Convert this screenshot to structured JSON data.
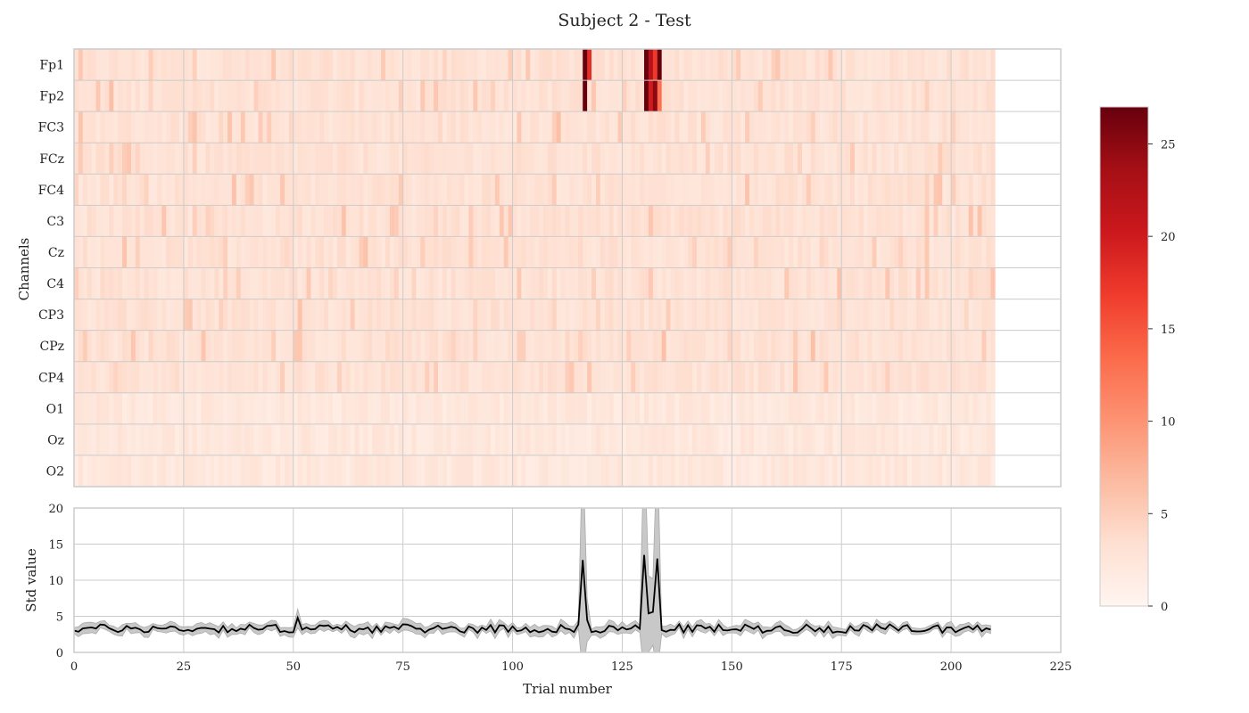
{
  "title": "Subject 2 - Test",
  "chart_data": [
    {
      "type": "heatmap",
      "ylabel": "Channels",
      "channels": [
        "Fp1",
        "Fp2",
        "FC3",
        "FCz",
        "FC4",
        "C3",
        "Cz",
        "C4",
        "CP3",
        "CPz",
        "CP4",
        "O1",
        "Oz",
        "O2"
      ],
      "xlim": [
        0,
        225
      ],
      "x_gridlines": [
        0,
        25,
        50,
        75,
        100,
        125,
        150,
        175,
        200,
        225
      ],
      "n_trials": 210,
      "baseline_value": 3,
      "artifact_cells": [
        {
          "channel": "Fp1",
          "trial": 116,
          "value": 27
        },
        {
          "channel": "Fp1",
          "trial": 117,
          "value": 18
        },
        {
          "channel": "Fp1",
          "trial": 130,
          "value": 27
        },
        {
          "channel": "Fp1",
          "trial": 131,
          "value": 22
        },
        {
          "channel": "Fp1",
          "trial": 132,
          "value": 17
        },
        {
          "channel": "Fp1",
          "trial": 133,
          "value": 27
        },
        {
          "channel": "Fp2",
          "trial": 116,
          "value": 27
        },
        {
          "channel": "Fp2",
          "trial": 130,
          "value": 27
        },
        {
          "channel": "Fp2",
          "trial": 131,
          "value": 20
        },
        {
          "channel": "Fp2",
          "trial": 132,
          "value": 25
        },
        {
          "channel": "Fp2",
          "trial": 133,
          "value": 13
        }
      ],
      "colorbar": {
        "min": 0,
        "max": 27,
        "ticks": [
          0,
          5,
          10,
          15,
          20,
          25
        ],
        "colormap": "Reds",
        "colors": [
          "#fff5f0",
          "#fee0d2",
          "#fcbba1",
          "#fc9272",
          "#fb6a4a",
          "#ef3b2c",
          "#cb181d",
          "#a50f15",
          "#67000d"
        ]
      }
    },
    {
      "type": "line",
      "xlabel": "Trial number",
      "ylabel": "Std value",
      "xlim": [
        0,
        225
      ],
      "ylim": [
        0,
        20
      ],
      "xticks": [
        0,
        25,
        50,
        75,
        100,
        125,
        150,
        175,
        200,
        225
      ],
      "yticks": [
        0,
        5,
        10,
        15,
        20
      ],
      "line_color": "#000000",
      "band_color": "#c8c8c8",
      "baseline_mean": 3.3,
      "baseline_band": 0.6,
      "spikes": [
        {
          "trial": 116,
          "mean": 12.8,
          "lower": -3,
          "upper": 29
        },
        {
          "trial": 117,
          "mean": 4.5,
          "lower": 1.5,
          "upper": 7.5
        },
        {
          "trial": 130,
          "mean": 13.5,
          "lower": -3,
          "upper": 30
        },
        {
          "trial": 131,
          "mean": 5.4,
          "lower": 0,
          "upper": 10.6
        },
        {
          "trial": 132,
          "mean": 5.6,
          "lower": 1,
          "upper": 10.2
        },
        {
          "trial": 133,
          "mean": 13.0,
          "lower": -3,
          "upper": 29
        },
        {
          "trial": 51,
          "mean": 4.8,
          "lower": 3.4,
          "upper": 6.0
        }
      ],
      "last_trial": 209
    }
  ]
}
